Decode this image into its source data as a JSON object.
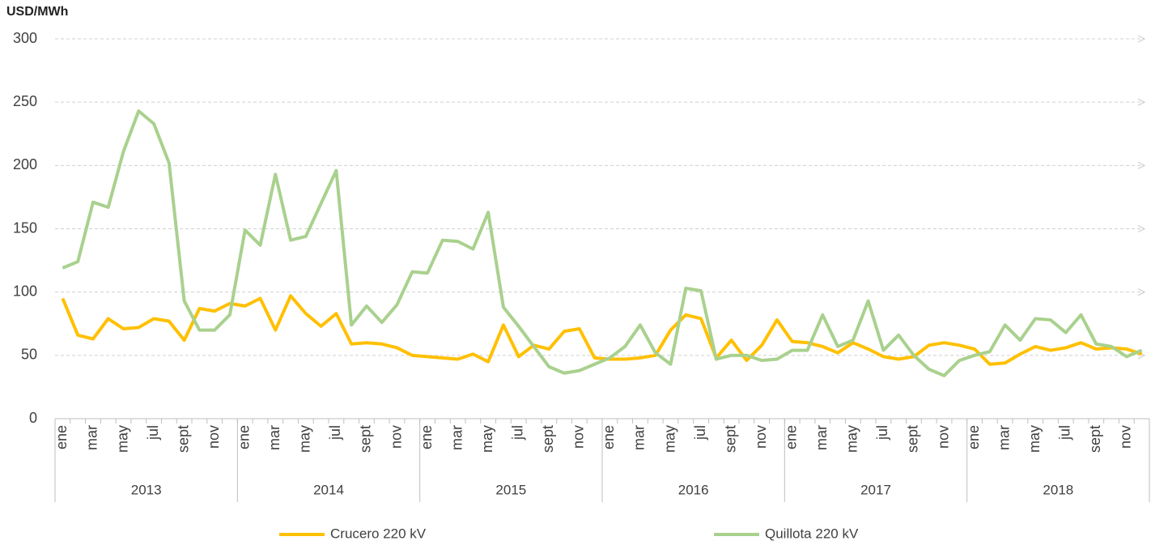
{
  "chart_data": {
    "type": "line",
    "y_axis_label": "USD/MWh",
    "categories": [
      "ene",
      null,
      "mar",
      null,
      "may",
      null,
      "jul",
      null,
      "sept",
      null,
      "nov",
      null,
      "ene",
      null,
      "mar",
      null,
      "may",
      null,
      "jul",
      null,
      "sept",
      null,
      "nov",
      null,
      "ene",
      null,
      "mar",
      null,
      "may",
      null,
      "jul",
      null,
      "sept",
      null,
      "nov",
      null,
      "ene",
      null,
      "mar",
      null,
      "may",
      null,
      "jul",
      null,
      "sept",
      null,
      "nov",
      null,
      "ene",
      null,
      "mar",
      null,
      "may",
      null,
      "jul",
      null,
      "sept",
      null,
      "nov",
      null,
      "ene",
      null,
      "mar",
      null,
      "may",
      null,
      "jul",
      null,
      "sept",
      null,
      "nov",
      null
    ],
    "year_labels": [
      "2013",
      "2014",
      "2015",
      "2016",
      "2017",
      "2018"
    ],
    "series": [
      {
        "name": "Crucero 220 kV",
        "color": "#ffc000",
        "values": [
          95,
          66,
          63,
          79,
          71,
          72,
          79,
          77,
          62,
          87,
          85,
          91,
          89,
          95,
          70,
          97,
          83,
          73,
          83,
          59,
          60,
          59,
          56,
          50,
          49,
          48,
          47,
          51,
          45,
          74,
          49,
          58,
          55,
          69,
          71,
          48,
          47,
          47,
          48,
          50,
          70,
          82,
          79,
          48,
          62,
          46,
          58,
          78,
          61,
          60,
          57,
          52,
          60,
          55,
          49,
          47,
          49,
          58,
          60,
          58,
          55,
          43,
          44,
          51,
          57,
          54,
          56,
          60,
          55,
          56,
          55,
          51
        ]
      },
      {
        "name": "Quillota 220 kV",
        "color": "#a9d18e",
        "values": [
          119,
          124,
          171,
          167,
          211,
          243,
          233,
          202,
          93,
          70,
          70,
          82,
          149,
          137,
          193,
          141,
          144,
          170,
          196,
          74,
          89,
          76,
          90,
          116,
          115,
          141,
          140,
          134,
          163,
          88,
          73,
          57,
          41,
          36,
          38,
          43,
          48,
          57,
          74,
          52,
          43,
          103,
          101,
          47,
          50,
          50,
          46,
          47,
          54,
          54,
          82,
          57,
          62,
          93,
          54,
          66,
          50,
          39,
          34,
          46,
          50,
          53,
          74,
          62,
          79,
          78,
          68,
          82,
          59,
          57,
          49,
          54
        ]
      }
    ],
    "ylim": [
      0,
      300
    ],
    "yticks": [
      0,
      50,
      100,
      150,
      200,
      250,
      300
    ],
    "grid": true,
    "legend": "bottom"
  }
}
